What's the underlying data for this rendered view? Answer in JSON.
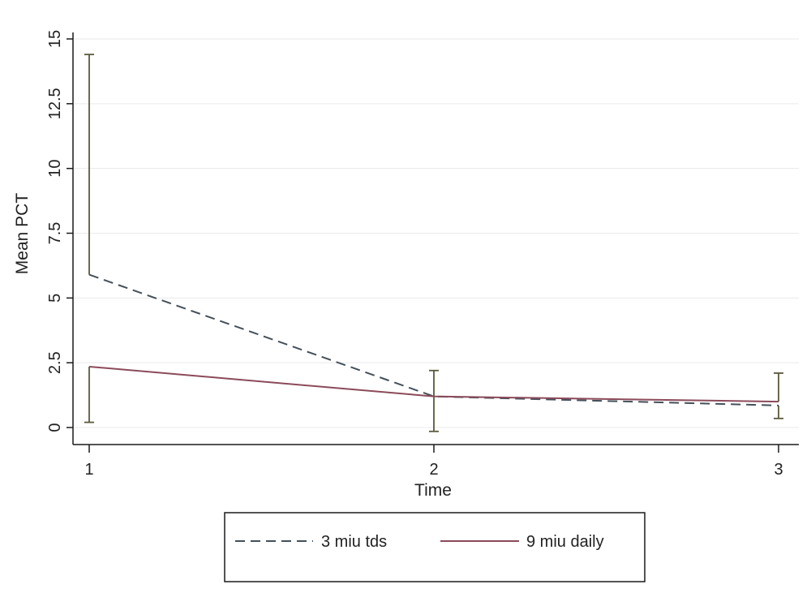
{
  "chart_data": {
    "type": "line",
    "title": "",
    "xlabel": "Time",
    "ylabel": "Mean PCT",
    "x": [
      1,
      2,
      3
    ],
    "x_ticks": [
      "1",
      "2",
      "3"
    ],
    "y_ticks": [
      "0",
      "2.5",
      "5",
      "7.5",
      "10",
      "12.5",
      "15"
    ],
    "ylim": [
      -0.3,
      15.2
    ],
    "grid": true,
    "legend_position": "bottom",
    "series": [
      {
        "name": "3 miu tds",
        "values": [
          5.9,
          1.2,
          0.85
        ],
        "line_style": "dashed",
        "color": "#44505a",
        "error_bars": [
          [
            null,
            14.4
          ],
          [
            -0.15,
            2.2
          ],
          [
            0.35,
            null
          ]
        ]
      },
      {
        "name": "9 miu daily",
        "values": [
          2.35,
          1.2,
          1.0
        ],
        "line_style": "solid",
        "color": "#8b4a5a",
        "error_bars": [
          [
            0.2,
            null
          ],
          [
            null,
            null
          ],
          [
            null,
            2.1
          ]
        ]
      }
    ],
    "error_bar_color": "#5b5a3c"
  }
}
